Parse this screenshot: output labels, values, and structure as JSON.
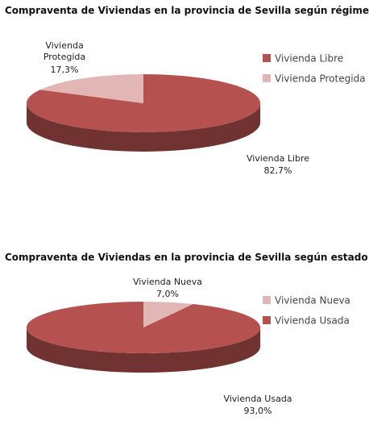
{
  "chart_data": [
    {
      "type": "pie",
      "title": "Compraventa de Viviendas en la provincia de Sevilla según régimen",
      "categories": [
        "Vivienda Libre",
        "Vivienda Protegida"
      ],
      "values": [
        82.7,
        17.3
      ],
      "value_labels": [
        "82,7%",
        "17,3%"
      ],
      "colors": [
        "#b5524f",
        "#e2b6b4"
      ],
      "legend": "right"
    },
    {
      "type": "pie",
      "title": "Compraventa de Viviendas en la provincia de Sevilla según estado",
      "categories": [
        "Vivienda Nueva",
        "Vivienda Usada"
      ],
      "values": [
        7.0,
        93.0
      ],
      "value_labels": [
        "7,0%",
        "93,0%"
      ],
      "colors": [
        "#e2b6b4",
        "#b5524f"
      ],
      "legend": "right"
    }
  ]
}
